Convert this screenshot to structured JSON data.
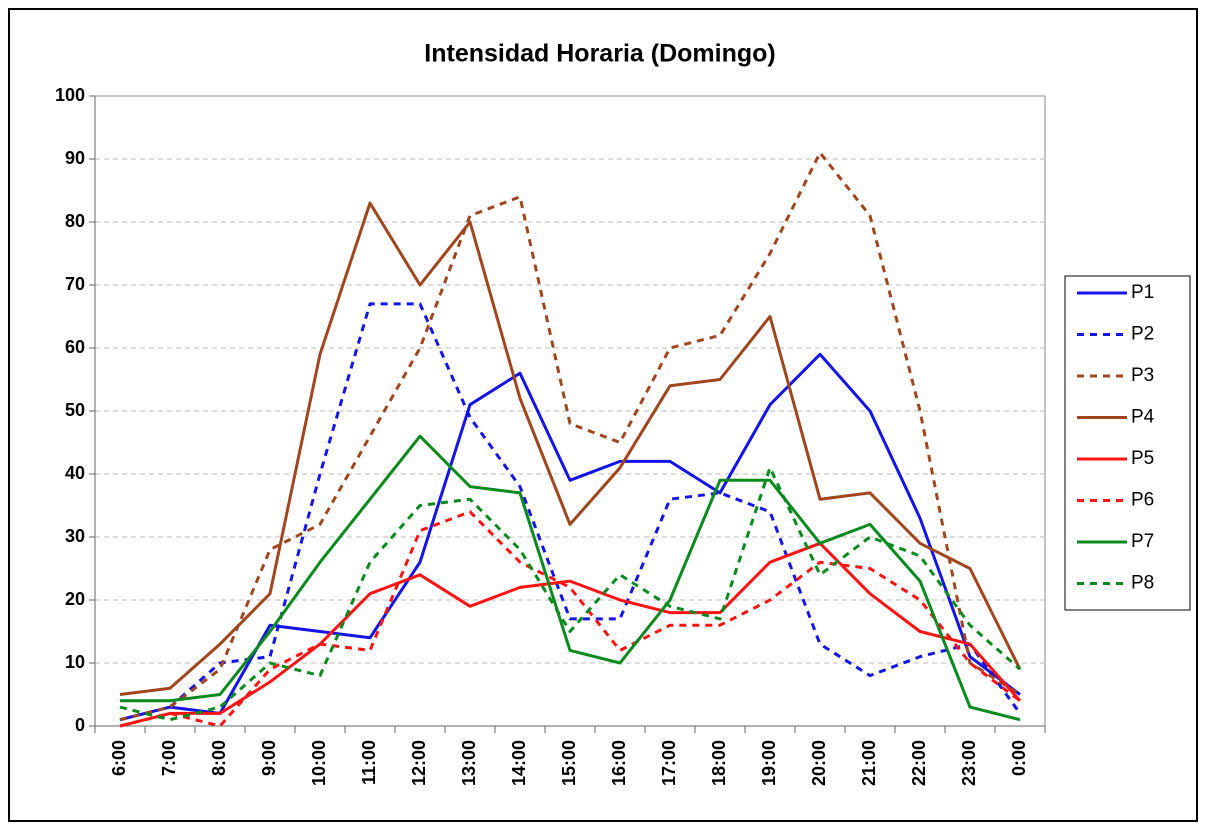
{
  "chart_data": {
    "type": "line",
    "title": "Intensidad Horaria (Domingo)",
    "categories": [
      "6:00",
      "7:00",
      "8:00",
      "9:00",
      "10:00",
      "11:00",
      "12:00",
      "13:00",
      "14:00",
      "15:00",
      "16:00",
      "17:00",
      "18:00",
      "19:00",
      "20:00",
      "21:00",
      "22:00",
      "23:00",
      "0:00"
    ],
    "ylim": [
      0,
      100
    ],
    "yticks": [
      0,
      10,
      20,
      30,
      40,
      50,
      60,
      70,
      80,
      90,
      100
    ],
    "grid": true,
    "legend": "right",
    "series": [
      {
        "name": "P1",
        "color": "#1414e6",
        "style": "solid",
        "values": [
          1,
          3,
          2,
          16,
          15,
          14,
          26,
          51,
          56,
          39,
          42,
          42,
          37,
          51,
          59,
          50,
          33,
          11,
          5
        ]
      },
      {
        "name": "P2",
        "color": "#1414e6",
        "style": "dashed",
        "values": [
          1,
          3,
          10,
          11,
          40,
          67,
          67,
          49,
          38,
          17,
          17,
          36,
          37,
          34,
          13,
          8,
          11,
          13,
          2
        ]
      },
      {
        "name": "P3",
        "color": "#a0461e",
        "style": "dashed",
        "values": [
          1,
          3,
          9,
          28,
          32,
          46,
          60,
          81,
          84,
          48,
          45,
          60,
          62,
          75,
          91,
          81,
          50,
          10,
          5
        ]
      },
      {
        "name": "P4",
        "color": "#a0461e",
        "style": "solid",
        "values": [
          5,
          6,
          13,
          21,
          59,
          83,
          70,
          80,
          52,
          32,
          41,
          54,
          55,
          65,
          36,
          37,
          29,
          25,
          9
        ]
      },
      {
        "name": "P5",
        "color": "#ff1414",
        "style": "solid",
        "values": [
          0,
          2,
          2,
          7,
          13,
          21,
          24,
          19,
          22,
          23,
          20,
          18,
          18,
          26,
          29,
          21,
          15,
          13,
          4
        ]
      },
      {
        "name": "P6",
        "color": "#ff1414",
        "style": "dashed",
        "values": [
          0,
          2,
          0,
          9,
          13,
          12,
          31,
          34,
          26,
          22,
          12,
          16,
          16,
          20,
          26,
          25,
          20,
          10,
          4
        ]
      },
      {
        "name": "P7",
        "color": "#0a8a1e",
        "style": "solid",
        "values": [
          4,
          4,
          5,
          15,
          26,
          36,
          46,
          38,
          37,
          12,
          10,
          20,
          39,
          39,
          29,
          32,
          23,
          3,
          1
        ]
      },
      {
        "name": "P8",
        "color": "#0a8a1e",
        "style": "dashed",
        "values": [
          3,
          1,
          3,
          10,
          8,
          26,
          35,
          36,
          28,
          15,
          24,
          19,
          17,
          41,
          24,
          30,
          27,
          16,
          9
        ]
      }
    ]
  }
}
